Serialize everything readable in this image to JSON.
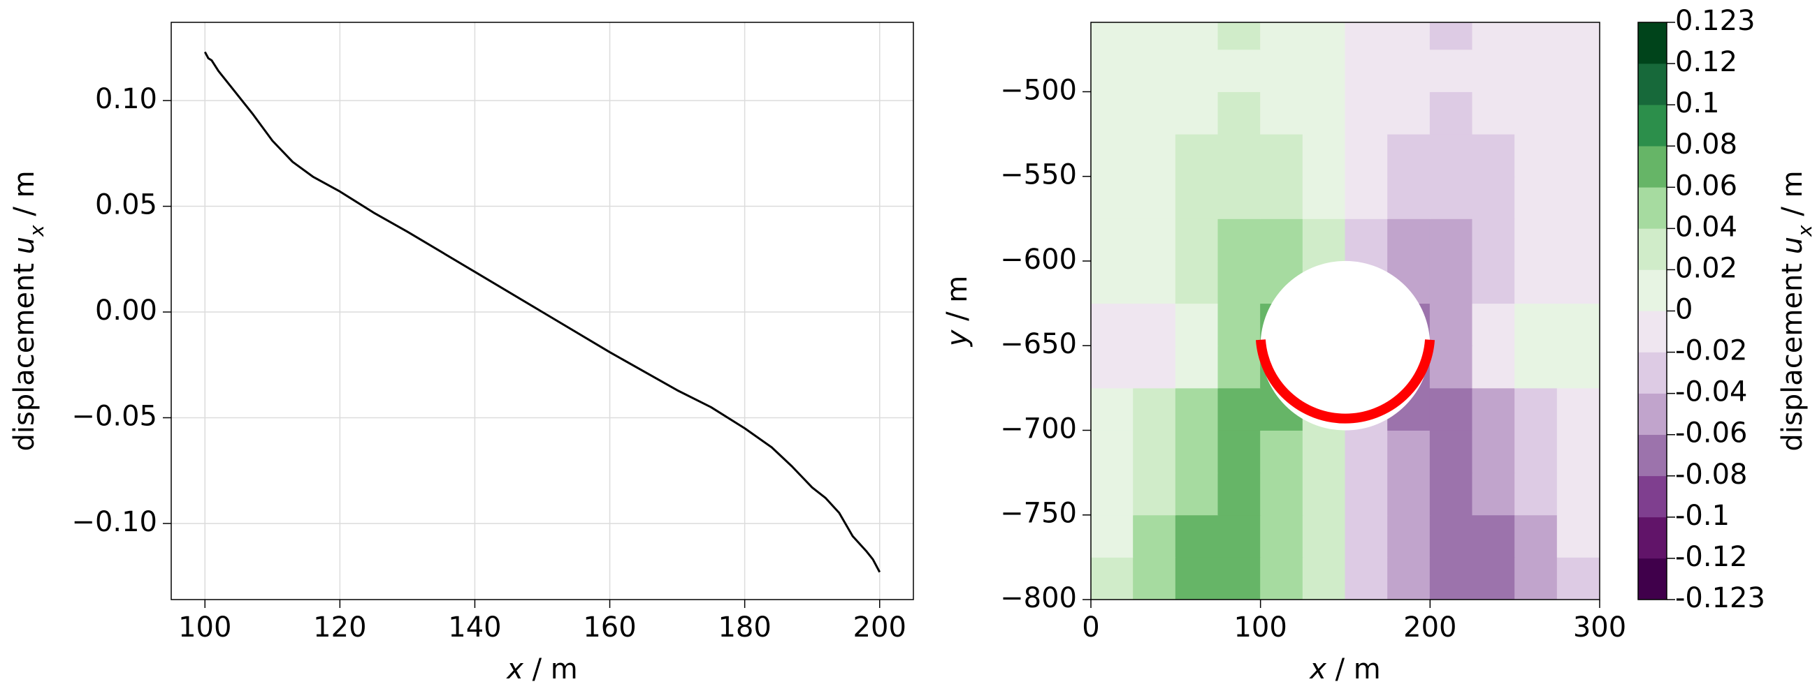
{
  "chart_data": [
    {
      "type": "line",
      "xlabel": [
        "x",
        " / m"
      ],
      "ylabel": [
        "displacement ",
        "u",
        "x",
        " / m"
      ],
      "x": [
        100,
        100.5,
        101,
        102,
        103,
        105,
        107,
        110,
        113,
        116,
        120,
        125,
        130,
        140,
        150,
        160,
        170,
        175,
        180,
        184,
        187,
        190,
        192,
        194,
        196,
        198,
        199,
        200
      ],
      "values": [
        0.123,
        0.12,
        0.119,
        0.114,
        0.11,
        0.102,
        0.094,
        0.081,
        0.071,
        0.064,
        0.057,
        0.047,
        0.038,
        0.019,
        0,
        -0.019,
        -0.037,
        -0.045,
        -0.055,
        -0.064,
        -0.073,
        -0.083,
        -0.088,
        -0.095,
        -0.106,
        -0.113,
        -0.117,
        -0.123
      ],
      "color": "#000000",
      "xlim": [
        95,
        205
      ],
      "xticks": [
        100,
        120,
        140,
        160,
        180,
        200
      ],
      "ylim": [
        -0.136,
        0.137
      ],
      "yticks": [
        {
          "value": -0.1,
          "label": "−0.10"
        },
        {
          "value": -0.05,
          "label": "−0.05"
        },
        {
          "value": 0,
          "label": "0.00"
        },
        {
          "value": 0.05,
          "label": "0.05"
        },
        {
          "value": 0.1,
          "label": "0.10"
        }
      ],
      "grid": true
    },
    {
      "type": "contour",
      "xlabel": [
        "x",
        " / m"
      ],
      "ylabel": [
        "y",
        " / m"
      ],
      "xlim": [
        0,
        300
      ],
      "xticks": [
        0,
        100,
        200,
        300
      ],
      "ylim": [
        -800,
        -459
      ],
      "yticks": [
        {
          "value": -800,
          "label": "−800"
        },
        {
          "value": -750,
          "label": "−750"
        },
        {
          "value": -700,
          "label": "−700"
        },
        {
          "value": -650,
          "label": "−650"
        },
        {
          "value": -600,
          "label": "−600"
        },
        {
          "value": -550,
          "label": "−550"
        },
        {
          "value": -500,
          "label": "−500"
        }
      ],
      "grid": false,
      "x": [
        12.5,
        37.5,
        62.5,
        87.5,
        112.5,
        137.5,
        162.5,
        187.5,
        212.5,
        237.5,
        262.5,
        287.5
      ],
      "y": [
        -787.5,
        -762.5,
        -737.5,
        -712.5,
        -687.5,
        -662.5,
        -637.5,
        -612.5,
        -587.5,
        -562.5,
        -537.5,
        -512.5,
        -487.5,
        -462.5
      ],
      "z": [
        [
          0.025,
          0.05,
          0.07,
          0.07,
          0.05,
          0.03,
          -0.03,
          -0.05,
          -0.07,
          -0.07,
          -0.05,
          -0.025
        ],
        [
          0.01,
          0.05,
          0.07,
          0.07,
          0.05,
          0.03,
          -0.03,
          -0.05,
          -0.07,
          -0.07,
          -0.05,
          -0.01
        ],
        [
          0.01,
          0.03,
          0.05,
          0.07,
          0.05,
          0.03,
          -0.03,
          -0.05,
          -0.07,
          -0.05,
          -0.03,
          -0.01
        ],
        [
          0.01,
          0.03,
          0.05,
          0.07,
          0.05,
          0.03,
          -0.03,
          -0.05,
          -0.07,
          -0.05,
          -0.03,
          -0.01
        ],
        [
          0.01,
          0.03,
          0.05,
          0.07,
          0.07,
          0.03,
          -0.03,
          -0.07,
          -0.07,
          -0.05,
          -0.03,
          -0.01
        ],
        [
          -0.01,
          -0.01,
          0.01,
          0.05,
          0.07,
          0.03,
          -0.03,
          -0.07,
          -0.05,
          -0.01,
          0.01,
          0.01
        ],
        [
          -0.01,
          -0.01,
          0.01,
          0.05,
          0.07,
          0.03,
          -0.03,
          -0.07,
          -0.05,
          -0.01,
          0.01,
          0.01
        ],
        [
          0.01,
          0.01,
          0.03,
          0.05,
          0.05,
          0.03,
          -0.03,
          -0.05,
          -0.05,
          -0.03,
          -0.01,
          -0.01
        ],
        [
          0.01,
          0.01,
          0.03,
          0.05,
          0.05,
          0.03,
          -0.03,
          -0.05,
          -0.05,
          -0.03,
          -0.01,
          -0.01
        ],
        [
          0.01,
          0.01,
          0.03,
          0.03,
          0.03,
          0.01,
          -0.01,
          -0.03,
          -0.03,
          -0.03,
          -0.01,
          -0.01
        ],
        [
          0.01,
          0.01,
          0.03,
          0.03,
          0.03,
          0.01,
          -0.01,
          -0.03,
          -0.03,
          -0.03,
          -0.01,
          -0.01
        ],
        [
          0.01,
          0.01,
          0.01,
          0.03,
          0.01,
          0.01,
          -0.01,
          -0.01,
          -0.03,
          -0.01,
          -0.01,
          -0.01
        ],
        [
          0.01,
          0.01,
          0.01,
          0.01,
          0.01,
          0.01,
          -0.01,
          -0.01,
          -0.01,
          -0.01,
          -0.01,
          -0.01
        ],
        [
          0.01,
          0.01,
          0.01,
          0.03,
          0.01,
          0.01,
          -0.01,
          -0.01,
          -0.03,
          -0.01,
          -0.01,
          -0.01
        ]
      ],
      "hole": {
        "x": 150,
        "y": -650,
        "r": 50,
        "color": "#ffffff"
      },
      "lining": {
        "color": "#ff0000",
        "start_angle": -4,
        "end_angle": 184
      },
      "colorbar": {
        "label": [
          "displacement ",
          "u",
          "x",
          " / m"
        ],
        "levels": [
          -0.123,
          -0.12,
          -0.1,
          -0.08,
          -0.06,
          -0.04,
          -0.02,
          0,
          0.02,
          0.04,
          0.06,
          0.08,
          0.1,
          0.12,
          0.123
        ],
        "colors": [
          "#40004b",
          "#611469",
          "#7f3f8f",
          "#9c73ac",
          "#c1a4cc",
          "#ddcbe4",
          "#efe6f0",
          "#e7f4e3",
          "#d0ecc9",
          "#a6dba0",
          "#66b567",
          "#2c8f4b",
          "#17693a",
          "#00441b"
        ]
      }
    }
  ]
}
